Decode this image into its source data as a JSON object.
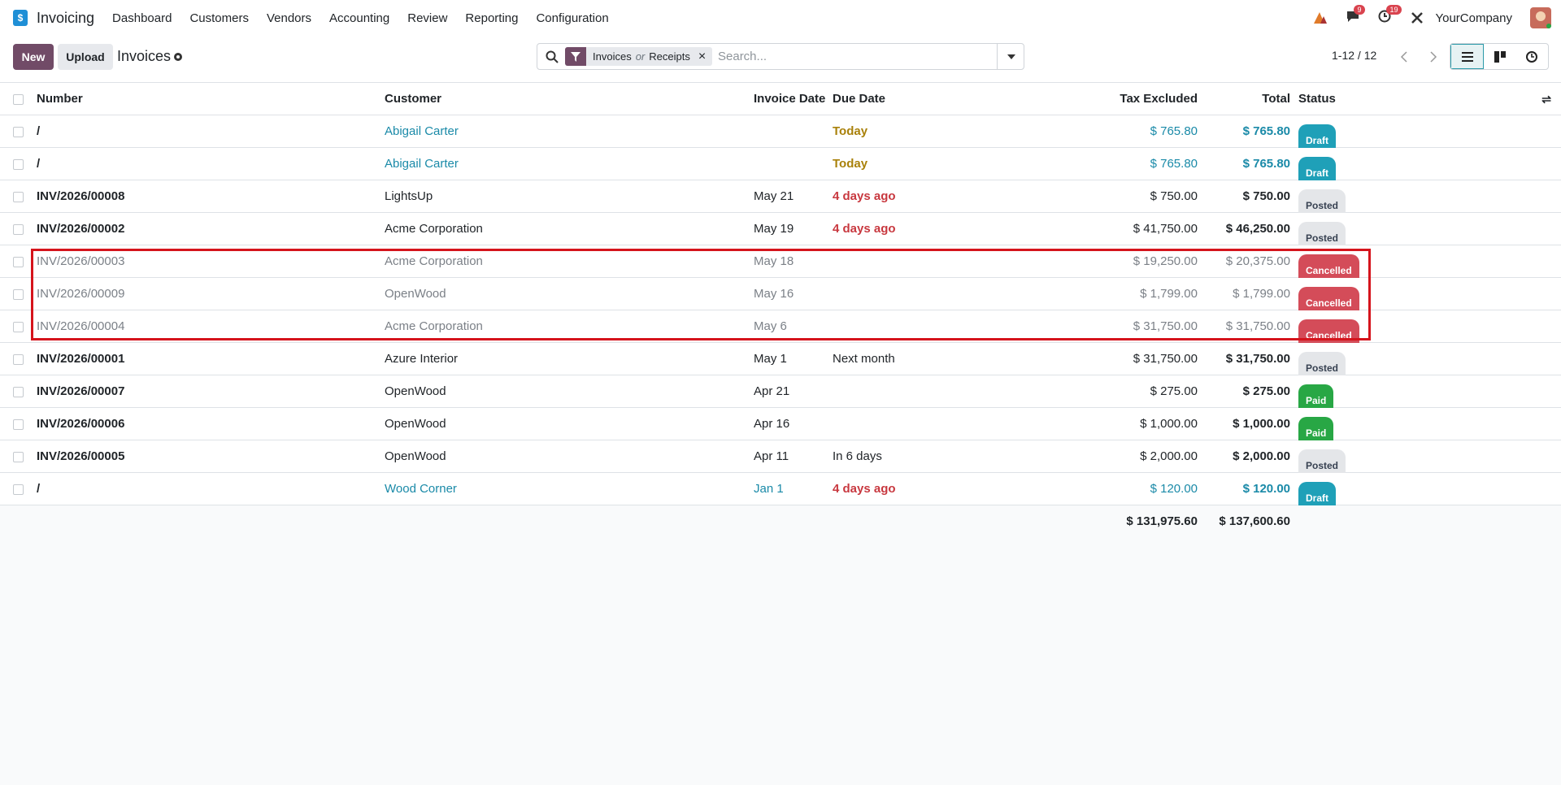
{
  "navbar": {
    "app": "Invoicing",
    "menu": [
      "Dashboard",
      "Customers",
      "Vendors",
      "Accounting",
      "Review",
      "Reporting",
      "Configuration"
    ],
    "messages_badge": "9",
    "activities_badge": "19",
    "company": "YourCompany"
  },
  "control_panel": {
    "new_button": "New",
    "upload_button": "Upload",
    "breadcrumb": "Invoices",
    "facet": {
      "first": "Invoices",
      "joiner": "or",
      "second": "Receipts"
    },
    "search_placeholder": "Search...",
    "pager": "1-12 / 12"
  },
  "table": {
    "headers": [
      "Number",
      "Customer",
      "Invoice Date",
      "Due Date",
      "Tax Excluded",
      "Total",
      "Status"
    ],
    "rows": [
      [
        "/",
        "Abigail Carter",
        "",
        "Today",
        "$ 765.80",
        "$ 765.80",
        "Draft"
      ],
      [
        "/",
        "Abigail Carter",
        "",
        "Today",
        "$ 765.80",
        "$ 765.80",
        "Draft"
      ],
      [
        "INV/2026/00008",
        "LightsUp",
        "May 21",
        "4 days ago",
        "$ 750.00",
        "$ 750.00",
        "Posted"
      ],
      [
        "INV/2026/00002",
        "Acme Corporation",
        "May 19",
        "4 days ago",
        "$ 41,750.00",
        "$ 46,250.00",
        "Posted"
      ],
      [
        "INV/2026/00003",
        "Acme Corporation",
        "May 18",
        "",
        "$ 19,250.00",
        "$ 20,375.00",
        "Cancelled"
      ],
      [
        "INV/2026/00009",
        "OpenWood",
        "May 16",
        "",
        "$ 1,799.00",
        "$ 1,799.00",
        "Cancelled"
      ],
      [
        "INV/2026/00004",
        "Acme Corporation",
        "May 6",
        "",
        "$ 31,750.00",
        "$ 31,750.00",
        "Cancelled"
      ],
      [
        "INV/2026/00001",
        "Azure Interior",
        "May 1",
        "Next month",
        "$ 31,750.00",
        "$ 31,750.00",
        "Posted"
      ],
      [
        "INV/2026/00007",
        "OpenWood",
        "Apr 21",
        "",
        "$ 275.00",
        "$ 275.00",
        "Paid"
      ],
      [
        "INV/2026/00006",
        "OpenWood",
        "Apr 16",
        "",
        "$ 1,000.00",
        "$ 1,000.00",
        "Paid"
      ],
      [
        "INV/2026/00005",
        "OpenWood",
        "Apr 11",
        "In 6 days",
        "$ 2,000.00",
        "$ 2,000.00",
        "Posted"
      ],
      [
        "/",
        "Wood Corner",
        "Jan 1",
        "4 days ago",
        "$ 120.00",
        "$ 120.00",
        "Draft"
      ]
    ],
    "totals": {
      "tax_excluded": "$ 131,975.60",
      "total": "$ 137,600.60"
    }
  }
}
